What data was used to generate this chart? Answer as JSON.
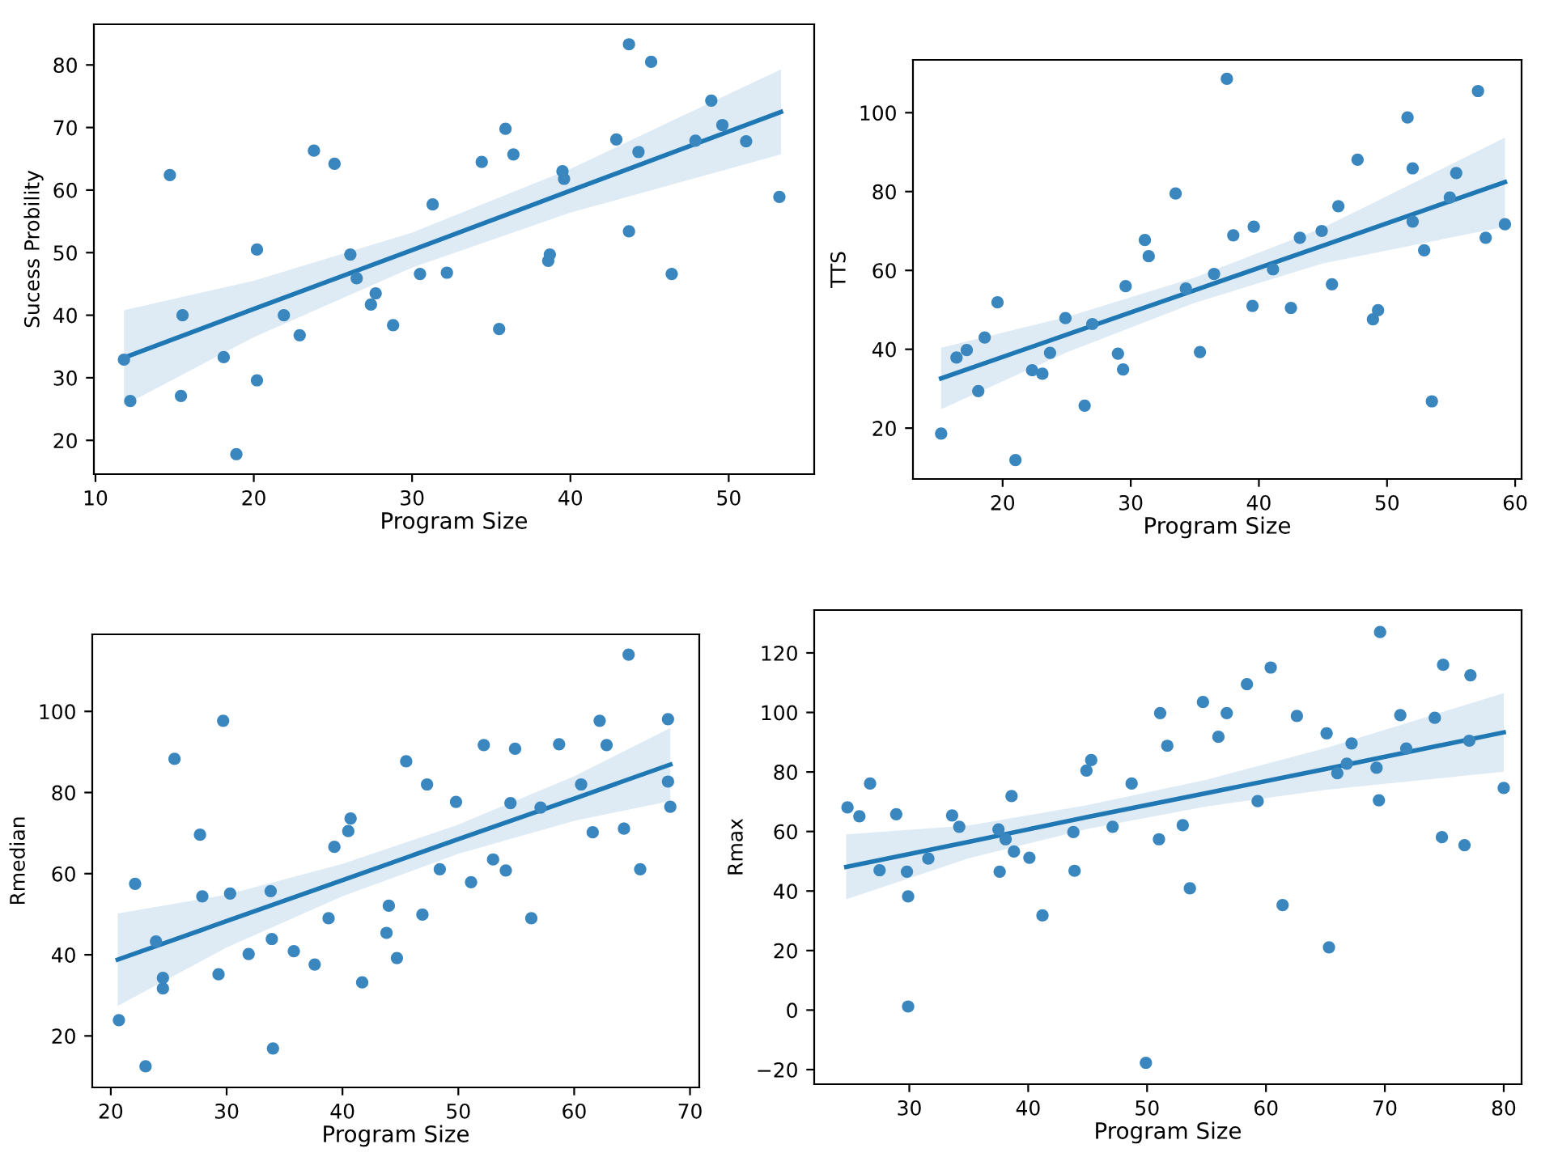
{
  "chart_data": [
    {
      "type": "scatter",
      "xlabel": "Program Size",
      "ylabel": "Sucess Probility",
      "xlim": [
        9.9,
        55.4
      ],
      "ylim": [
        14.6,
        86.5
      ],
      "xticks": [
        10,
        20,
        30,
        40,
        50
      ],
      "yticks": [
        20,
        30,
        40,
        50,
        60,
        70,
        80
      ],
      "series": [
        {
          "marker": "circle",
          "color": "#3a86bf",
          "x": [
            11.8,
            12.2,
            14.7,
            15.5,
            15.4,
            18.1,
            18.9,
            20.2,
            20.2,
            21.9,
            22.9,
            23.8,
            25.1,
            26.1,
            26.5,
            27.4,
            27.7,
            28.8,
            30.5,
            31.3,
            32.2,
            34.4,
            35.5,
            35.9,
            36.4,
            38.6,
            38.7,
            39.5,
            39.6,
            42.9,
            43.7,
            43.7,
            44.3,
            45.1,
            46.4,
            47.9,
            48.9,
            49.6,
            51.1,
            53.2
          ],
          "values": [
            32.9,
            26.3,
            62.4,
            40.0,
            27.1,
            33.3,
            17.8,
            50.5,
            29.6,
            40.0,
            36.8,
            66.3,
            64.2,
            49.7,
            45.9,
            41.7,
            43.5,
            38.4,
            46.6,
            57.7,
            46.8,
            64.5,
            37.8,
            69.8,
            65.7,
            48.7,
            49.7,
            63.0,
            61.8,
            68.1,
            83.3,
            53.4,
            66.1,
            80.5,
            46.6,
            67.9,
            74.3,
            70.4,
            67.8,
            58.9
          ]
        },
        {
          "type": "line",
          "color": "#1f77b4",
          "x": [
            11.8,
            20,
            30,
            40,
            53.3
          ],
          "values": [
            33.2,
            41.0,
            50.4,
            59.9,
            72.5
          ],
          "lower": [
            25.6,
            36.5,
            47.6,
            56.4,
            65.7
          ],
          "upper": [
            40.8,
            45.5,
            53.2,
            63.4,
            79.3
          ]
        }
      ]
    },
    {
      "type": "scatter",
      "xlabel": "Program Size",
      "ylabel": "TTS",
      "xlim": [
        13.0,
        60.5
      ],
      "ylim": [
        7.1,
        113.4
      ],
      "xticks": [
        20,
        30,
        40,
        50,
        60
      ],
      "yticks": [
        20,
        40,
        60,
        80,
        100
      ],
      "series": [
        {
          "marker": "circle",
          "color": "#3a86bf",
          "x": [
            15.2,
            16.4,
            17.2,
            18.1,
            18.6,
            19.6,
            21.0,
            22.3,
            23.1,
            23.7,
            24.9,
            26.4,
            27.0,
            29.0,
            29.4,
            29.6,
            31.1,
            31.4,
            33.5,
            34.3,
            35.4,
            36.5,
            37.5,
            38.0,
            39.5,
            39.6,
            41.1,
            42.5,
            43.2,
            44.9,
            45.7,
            46.2,
            47.7,
            48.9,
            49.3,
            51.6,
            52.0,
            52.0,
            52.9,
            53.5,
            54.9,
            55.4,
            57.1,
            57.7,
            59.2
          ],
          "values": [
            18.6,
            37.9,
            39.8,
            29.4,
            43.0,
            51.9,
            11.9,
            34.7,
            33.8,
            39.1,
            47.9,
            25.7,
            46.4,
            38.9,
            34.9,
            56.0,
            67.7,
            63.6,
            79.5,
            55.4,
            39.3,
            59.1,
            108.6,
            68.9,
            51.0,
            71.1,
            60.3,
            50.5,
            68.3,
            70.0,
            56.5,
            76.3,
            88.1,
            47.6,
            49.9,
            98.8,
            85.9,
            72.4,
            65.1,
            26.8,
            78.5,
            84.7,
            105.5,
            68.3,
            71.7
          ]
        },
        {
          "type": "line",
          "color": "#1f77b4",
          "x": [
            15.2,
            25,
            35,
            45,
            59.2
          ],
          "values": [
            32.6,
            43.7,
            55.0,
            66.3,
            82.4
          ],
          "lower": [
            24.8,
            39.2,
            51.8,
            61.8,
            71.1
          ],
          "upper": [
            40.4,
            48.2,
            58.2,
            70.8,
            93.7
          ]
        }
      ]
    },
    {
      "type": "scatter",
      "xlabel": "Program Size",
      "ylabel": "Rmedian",
      "xlim": [
        18.4,
        70.8
      ],
      "ylim": [
        7.3,
        119.0
      ],
      "xticks": [
        20,
        30,
        40,
        50,
        60,
        70
      ],
      "yticks": [
        20,
        40,
        60,
        80,
        100
      ],
      "series": [
        {
          "marker": "circle",
          "color": "#3a86bf",
          "x": [
            20.7,
            22.1,
            23.0,
            23.9,
            24.5,
            24.5,
            25.5,
            27.7,
            27.9,
            29.3,
            29.7,
            30.3,
            31.9,
            33.8,
            33.9,
            34.0,
            35.8,
            37.6,
            38.8,
            39.3,
            40.5,
            40.7,
            41.7,
            43.8,
            44.0,
            44.7,
            45.5,
            46.9,
            47.3,
            48.4,
            49.8,
            51.1,
            52.2,
            53.0,
            54.1,
            54.5,
            54.9,
            56.3,
            57.1,
            58.7,
            60.6,
            61.6,
            62.2,
            62.8,
            64.3,
            64.7,
            65.7,
            68.1,
            68.1,
            68.3
          ],
          "values": [
            23.9,
            57.5,
            12.5,
            43.3,
            34.3,
            31.7,
            88.3,
            69.6,
            54.4,
            35.2,
            97.7,
            55.1,
            40.2,
            55.7,
            43.9,
            16.9,
            40.9,
            37.6,
            49.0,
            66.6,
            70.5,
            73.6,
            33.2,
            45.4,
            52.1,
            39.2,
            87.7,
            49.9,
            82.0,
            61.1,
            77.7,
            57.9,
            91.7,
            63.5,
            60.8,
            77.4,
            90.8,
            49.0,
            76.3,
            91.9,
            82.0,
            70.2,
            97.7,
            91.7,
            71.1,
            114.0,
            61.1,
            98.1,
            82.7,
            76.5
          ]
        },
        {
          "type": "line",
          "color": "#1f77b4",
          "x": [
            20.6,
            30,
            40,
            50,
            60,
            68.3
          ],
          "values": [
            38.8,
            48.3,
            58.4,
            68.5,
            78.5,
            86.9
          ],
          "lower": [
            27.4,
            41.8,
            54.4,
            64.9,
            73.0,
            77.9
          ],
          "upper": [
            50.2,
            54.8,
            62.4,
            72.1,
            84.0,
            95.9
          ]
        }
      ]
    },
    {
      "type": "scatter",
      "xlabel": "Program Size",
      "ylabel": "Rmax",
      "xlim": [
        22.0,
        81.5
      ],
      "ylim": [
        -24.9,
        134.4
      ],
      "xticks": [
        30,
        40,
        50,
        60,
        70,
        80
      ],
      "yticks": [
        {
          "value": -20,
          "label": "−20"
        },
        0,
        20,
        40,
        60,
        80,
        100,
        120
      ],
      "series": [
        {
          "marker": "circle",
          "color": "#3a86bf",
          "x": [
            24.8,
            25.8,
            26.7,
            27.5,
            28.9,
            29.8,
            29.9,
            29.9,
            31.6,
            33.6,
            34.2,
            37.5,
            37.6,
            38.1,
            38.6,
            38.8,
            40.1,
            41.2,
            43.8,
            43.9,
            44.9,
            45.3,
            47.1,
            48.7,
            49.9,
            51.0,
            51.1,
            51.7,
            53.0,
            53.6,
            54.7,
            56.0,
            56.7,
            58.4,
            59.3,
            60.4,
            61.4,
            62.6,
            65.1,
            65.3,
            66.0,
            66.8,
            67.2,
            69.3,
            69.5,
            69.6,
            71.3,
            71.8,
            74.2,
            74.8,
            74.9,
            76.7,
            77.1,
            77.2,
            80.0
          ],
          "values": [
            68.1,
            65.1,
            76.1,
            47.0,
            65.8,
            46.5,
            38.2,
            1.2,
            50.9,
            65.4,
            61.6,
            60.7,
            46.5,
            57.4,
            71.9,
            53.3,
            51.2,
            31.8,
            59.8,
            46.8,
            80.5,
            84.0,
            61.6,
            76.1,
            -17.7,
            57.4,
            99.8,
            88.8,
            62.1,
            40.9,
            103.5,
            91.8,
            99.8,
            109.5,
            70.2,
            115.1,
            35.3,
            98.8,
            93.0,
            21.1,
            79.6,
            82.8,
            89.6,
            81.4,
            70.5,
            127.0,
            99.1,
            87.9,
            98.2,
            58.1,
            116.0,
            55.4,
            90.5,
            112.5,
            74.6
          ]
        },
        {
          "type": "line",
          "color": "#1f77b4",
          "x": [
            24.7,
            35,
            45,
            55,
            65,
            80
          ],
          "values": [
            48.1,
            56.5,
            64.9,
            72.9,
            81.0,
            93.3
          ],
          "lower": [
            37.2,
            51.0,
            60.9,
            68.4,
            74.0,
            80.1
          ],
          "upper": [
            59.0,
            62.0,
            68.9,
            77.4,
            88.0,
            106.5
          ]
        }
      ]
    }
  ]
}
